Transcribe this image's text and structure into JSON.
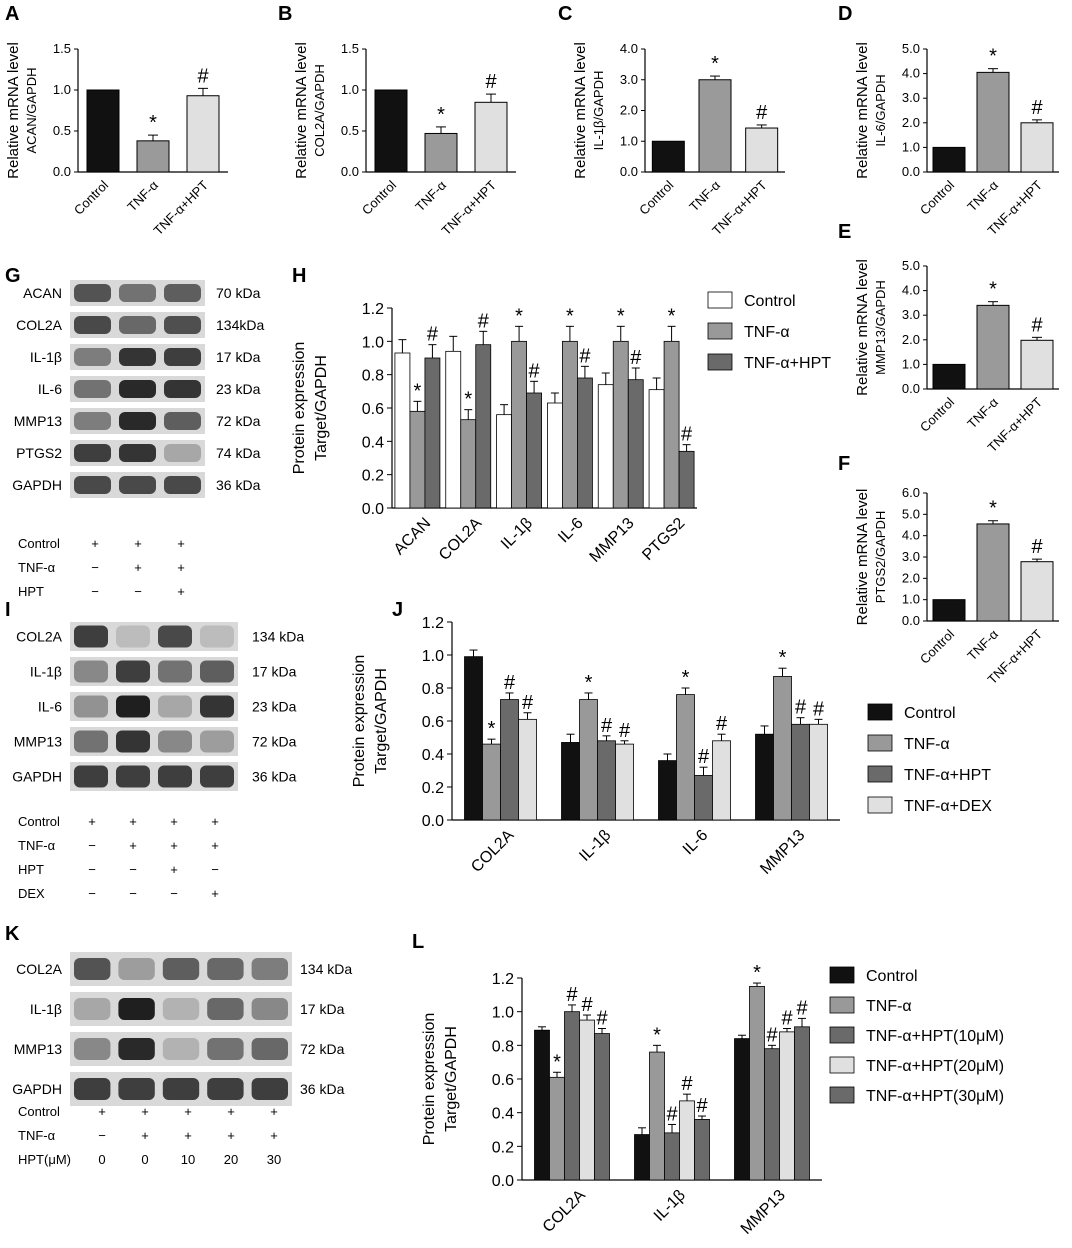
{
  "colors": {
    "black": "#111111",
    "light": "#e0e0e0",
    "mid": "#9a9a9a",
    "dark": "#6a6a6a",
    "grey3": "#999999",
    "white": "#ffffff"
  },
  "panels": {
    "A": "A",
    "B": "B",
    "C": "C",
    "D": "D",
    "E": "E",
    "F": "F",
    "G": "G",
    "H": "H",
    "I": "I",
    "J": "J",
    "K": "K",
    "L": "L"
  },
  "charts_small": [
    {
      "letter": "A",
      "ylab1": "Relative mRNA level",
      "ylab2": "ACAN/GAPDH",
      "ylim": [
        0,
        1.5
      ],
      "ticks": [
        "0.0",
        "0.5",
        "1.0",
        "1.5"
      ],
      "cats": [
        "Control",
        "TNF-α",
        "TNF-α+HPT"
      ],
      "values": [
        1.0,
        0.38,
        0.93
      ],
      "err": [
        0,
        0.07,
        0.09
      ],
      "marks": [
        "",
        "*",
        "#"
      ]
    },
    {
      "letter": "B",
      "ylab1": "Relative mRNA level",
      "ylab2": "COL2A/GAPDH",
      "ylim": [
        0,
        1.5
      ],
      "ticks": [
        "0.0",
        "0.5",
        "1.0",
        "1.5"
      ],
      "cats": [
        "Control",
        "TNF-α",
        "TNF-α+HPT"
      ],
      "values": [
        1.0,
        0.47,
        0.85
      ],
      "err": [
        0,
        0.08,
        0.1
      ],
      "marks": [
        "",
        "*",
        "#"
      ]
    },
    {
      "letter": "C",
      "ylab1": "Relative mRNA level",
      "ylab2": "IL-1β/GAPDH",
      "ylim": [
        0,
        4
      ],
      "ticks": [
        "0.0",
        "1.0",
        "2.0",
        "3.0",
        "4.0"
      ],
      "cats": [
        "Control",
        "TNF-α",
        "TNF-α+HPT"
      ],
      "values": [
        1.0,
        3.0,
        1.43
      ],
      "err": [
        0,
        0.12,
        0.1
      ],
      "marks": [
        "",
        "*",
        "#"
      ]
    },
    {
      "letter": "D",
      "ylab1": "Relative mRNA level",
      "ylab2": "IL-6/GAPDH",
      "ylim": [
        0,
        5
      ],
      "ticks": [
        "0.0",
        "1.0",
        "2.0",
        "3.0",
        "4.0",
        "5.0"
      ],
      "cats": [
        "Control",
        "TNF-α",
        "TNF-α+HPT"
      ],
      "values": [
        1.0,
        4.05,
        2.0
      ],
      "err": [
        0,
        0.15,
        0.12
      ],
      "marks": [
        "",
        "*",
        "#"
      ]
    },
    {
      "letter": "E",
      "ylab1": "Relative mRNA level",
      "ylab2": "MMP13/GAPDH",
      "ylim": [
        0,
        5
      ],
      "ticks": [
        "0.0",
        "1.0",
        "2.0",
        "3.0",
        "4.0",
        "5.0"
      ],
      "cats": [
        "Control",
        "TNF-α",
        "TNF-α+HPT"
      ],
      "values": [
        1.0,
        3.4,
        1.98
      ],
      "err": [
        0,
        0.15,
        0.12
      ],
      "marks": [
        "",
        "*",
        "#"
      ]
    },
    {
      "letter": "F",
      "ylab1": "Relative mRNA level",
      "ylab2": "PTGS2/GAPDH",
      "ylim": [
        0,
        6
      ],
      "ticks": [
        "0.0",
        "1.0",
        "2.0",
        "3.0",
        "4.0",
        "5.0",
        "6.0"
      ],
      "cats": [
        "Control",
        "TNF-α",
        "TNF-α+HPT"
      ],
      "values": [
        1.0,
        4.55,
        2.78
      ],
      "err": [
        0,
        0.15,
        0.12
      ],
      "marks": [
        "",
        "*",
        "#"
      ]
    }
  ],
  "chart_data": [
    {
      "type": "bar",
      "panel": "H",
      "ylabel1": "Protein expression",
      "ylabel2": "Target/GAPDH",
      "ylim": [
        0,
        1.2
      ],
      "ticks": [
        "0.0",
        "0.2",
        "0.4",
        "0.6",
        "0.8",
        "1.0",
        "1.2"
      ],
      "categories": [
        "ACAN",
        "COL2A",
        "IL-1β",
        "IL-6",
        "MMP13",
        "PTGS2"
      ],
      "series": [
        {
          "name": "Control",
          "values": [
            0.93,
            0.94,
            0.56,
            0.63,
            0.74,
            0.71
          ],
          "err": [
            0.08,
            0.09,
            0.06,
            0.06,
            0.07,
            0.07
          ],
          "marks": [
            "",
            "",
            "",
            "",
            "",
            ""
          ]
        },
        {
          "name": "TNF-α",
          "values": [
            0.58,
            0.53,
            1.0,
            1.0,
            1.0,
            1.0
          ],
          "err": [
            0.06,
            0.06,
            0.09,
            0.09,
            0.09,
            0.09
          ],
          "marks": [
            "*",
            "*",
            "*",
            "*",
            "*",
            "*"
          ]
        },
        {
          "name": "TNF-α+HPT",
          "values": [
            0.9,
            0.98,
            0.69,
            0.78,
            0.77,
            0.34
          ],
          "err": [
            0.08,
            0.08,
            0.07,
            0.07,
            0.07,
            0.04
          ],
          "marks": [
            "#",
            "#",
            "#",
            "#",
            "#",
            "#"
          ]
        }
      ]
    },
    {
      "type": "bar",
      "panel": "J",
      "ylabel1": "Protein expression",
      "ylabel2": "Target/GAPDH",
      "ylim": [
        0,
        1.2
      ],
      "ticks": [
        "0.0",
        "0.2",
        "0.4",
        "0.6",
        "0.8",
        "1.0",
        "1.2"
      ],
      "categories": [
        "COL2A",
        "IL-1β",
        "IL-6",
        "MMP13"
      ],
      "series": [
        {
          "name": "Control",
          "values": [
            0.99,
            0.47,
            0.36,
            0.52
          ],
          "err": [
            0.04,
            0.05,
            0.04,
            0.05
          ],
          "marks": [
            "",
            "",
            "",
            ""
          ]
        },
        {
          "name": "TNF-α",
          "values": [
            0.46,
            0.73,
            0.76,
            0.87
          ],
          "err": [
            0.03,
            0.04,
            0.04,
            0.05
          ],
          "marks": [
            "*",
            "*",
            "*",
            "*"
          ]
        },
        {
          "name": "TNF-α+HPT",
          "values": [
            0.73,
            0.48,
            0.27,
            0.58
          ],
          "err": [
            0.04,
            0.03,
            0.05,
            0.04
          ],
          "marks": [
            "#",
            "#",
            "#",
            "#"
          ]
        },
        {
          "name": "TNF-α+DEX",
          "values": [
            0.61,
            0.46,
            0.48,
            0.58
          ],
          "err": [
            0.04,
            0.02,
            0.04,
            0.03
          ],
          "marks": [
            "#",
            "#",
            "#",
            "#"
          ]
        }
      ]
    },
    {
      "type": "bar",
      "panel": "L",
      "ylabel1": "Protein expression",
      "ylabel2": "Target/GAPDH",
      "ylim": [
        0,
        1.2
      ],
      "ticks": [
        "0.0",
        "0.2",
        "0.4",
        "0.6",
        "0.8",
        "1.0",
        "1.2"
      ],
      "categories": [
        "COL2A",
        "IL-1β",
        "MMP13"
      ],
      "series": [
        {
          "name": "Control",
          "values": [
            0.89,
            0.27,
            0.84
          ],
          "err": [
            0.02,
            0.04,
            0.02
          ],
          "marks": [
            "",
            "",
            ""
          ]
        },
        {
          "name": "TNF-α",
          "values": [
            0.61,
            0.76,
            1.15
          ],
          "err": [
            0.03,
            0.04,
            0.02
          ],
          "marks": [
            "*",
            "*",
            "*"
          ]
        },
        {
          "name": "TNF-α+HPT(10μM)",
          "values": [
            1.0,
            0.28,
            0.78
          ],
          "err": [
            0.04,
            0.05,
            0.02
          ],
          "marks": [
            "#",
            "#",
            "#"
          ]
        },
        {
          "name": "TNF-α+HPT(20μM)",
          "values": [
            0.95,
            0.47,
            0.88
          ],
          "err": [
            0.03,
            0.04,
            0.02
          ],
          "marks": [
            "#",
            "#",
            "#"
          ]
        },
        {
          "name": "TNF-α+HPT(30μM)",
          "values": [
            0.87,
            0.36,
            0.91
          ],
          "err": [
            0.03,
            0.02,
            0.05
          ],
          "marks": [
            "#",
            "#",
            "#"
          ]
        }
      ]
    }
  ],
  "blots": {
    "G": {
      "rows": [
        "ACAN",
        "COL2A",
        "IL-1β",
        "IL-6",
        "MMP13",
        "PTGS2",
        "GAPDH"
      ],
      "kda": [
        "70 kDa",
        "134kDa",
        "17 kDa",
        "23 kDa",
        "72 kDa",
        "74 kDa",
        "36 kDa"
      ],
      "table": [
        [
          "Control",
          "+",
          "+",
          "+"
        ],
        [
          "TNF-α",
          "−",
          "+",
          "+"
        ],
        [
          "HPT",
          "−",
          "−",
          "+"
        ]
      ]
    },
    "I": {
      "rows": [
        "COL2A",
        "IL-1β",
        "IL-6",
        "MMP13",
        "GAPDH"
      ],
      "kda": [
        "134 kDa",
        "17 kDa",
        "23 kDa",
        "72 kDa",
        "36 kDa"
      ],
      "table": [
        [
          "Control",
          "+",
          "+",
          "+",
          "+"
        ],
        [
          "TNF-α",
          "−",
          "+",
          "+",
          "+"
        ],
        [
          "HPT",
          "−",
          "−",
          "+",
          "−"
        ],
        [
          "DEX",
          "−",
          "−",
          "−",
          "+"
        ]
      ]
    },
    "K": {
      "rows": [
        "COL2A",
        "IL-1β",
        "MMP13",
        "GAPDH"
      ],
      "kda": [
        "134 kDa",
        "17 kDa",
        "72 kDa",
        "36 kDa"
      ],
      "table": [
        [
          "Control",
          "+",
          "+",
          "+",
          "+",
          "+"
        ],
        [
          "TNF-α",
          "−",
          "+",
          "+",
          "+",
          "+"
        ],
        [
          "HPT(μM)",
          "0",
          "0",
          "10",
          "20",
          "30"
        ]
      ]
    }
  }
}
